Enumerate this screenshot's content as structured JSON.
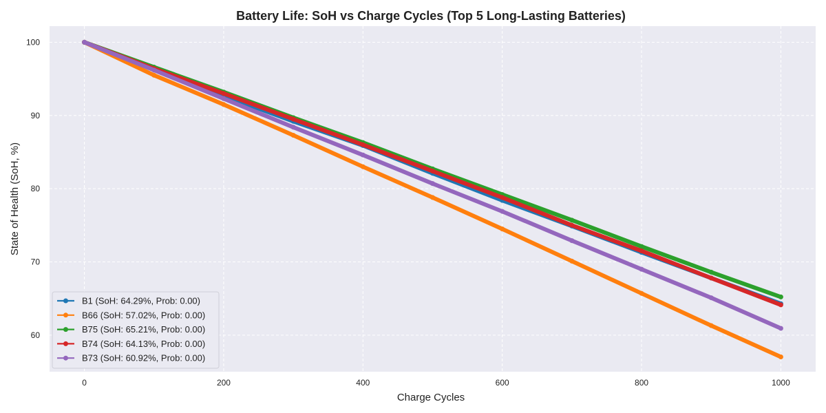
{
  "chart_data": {
    "type": "line",
    "title": "Battery Life: SoH vs Charge Cycles (Top 5 Long-Lasting Batteries)",
    "xlabel": "Charge Cycles",
    "ylabel": "State of Health (SoH, %)",
    "xlim": [
      -50,
      1050
    ],
    "ylim": [
      55,
      102.2
    ],
    "xticks": [
      0,
      200,
      400,
      600,
      800,
      1000
    ],
    "yticks": [
      60,
      70,
      80,
      90,
      100
    ],
    "grid": true,
    "legend_position": "lower-left",
    "background_color": "#eaeaf2",
    "series": [
      {
        "name": "B1 (SoH: 64.29%, Prob: 0.00)",
        "color": "#1f77b4",
        "x": [
          0,
          100,
          200,
          300,
          400,
          500,
          600,
          700,
          800,
          900,
          1000
        ],
        "y": [
          100,
          96.3,
          92.7,
          89.2,
          85.9,
          82.1,
          78.4,
          74.9,
          71.3,
          67.8,
          64.29
        ]
      },
      {
        "name": "B66 (SoH: 57.02%, Prob: 0.00)",
        "color": "#ff7f0e",
        "x": [
          0,
          100,
          200,
          300,
          400,
          500,
          600,
          700,
          800,
          900,
          1000
        ],
        "y": [
          100,
          95.5,
          91.5,
          87.3,
          83.0,
          78.8,
          74.5,
          70.1,
          65.7,
          61.3,
          57.02
        ]
      },
      {
        "name": "B75 (SoH: 65.21%, Prob: 0.00)",
        "color": "#2ca02c",
        "x": [
          0,
          100,
          200,
          300,
          400,
          500,
          600,
          700,
          800,
          900,
          1000
        ],
        "y": [
          100,
          96.6,
          93.2,
          89.7,
          86.3,
          82.7,
          79.2,
          75.7,
          72.1,
          68.6,
          65.21
        ]
      },
      {
        "name": "B74 (SoH: 64.13%, Prob: 0.00)",
        "color": "#d62728",
        "x": [
          0,
          100,
          200,
          300,
          400,
          500,
          600,
          700,
          800,
          900,
          1000
        ],
        "y": [
          100,
          96.4,
          93.0,
          89.5,
          86.0,
          82.4,
          78.8,
          75.0,
          71.5,
          67.8,
          64.13
        ]
      },
      {
        "name": "B73 (SoH: 60.92%, Prob: 0.00)",
        "color": "#9467bd",
        "x": [
          0,
          100,
          200,
          300,
          400,
          500,
          600,
          700,
          800,
          900,
          1000
        ],
        "y": [
          100,
          96.2,
          92.3,
          88.4,
          84.6,
          80.7,
          76.9,
          72.9,
          69.0,
          65.1,
          60.92
        ]
      }
    ]
  }
}
